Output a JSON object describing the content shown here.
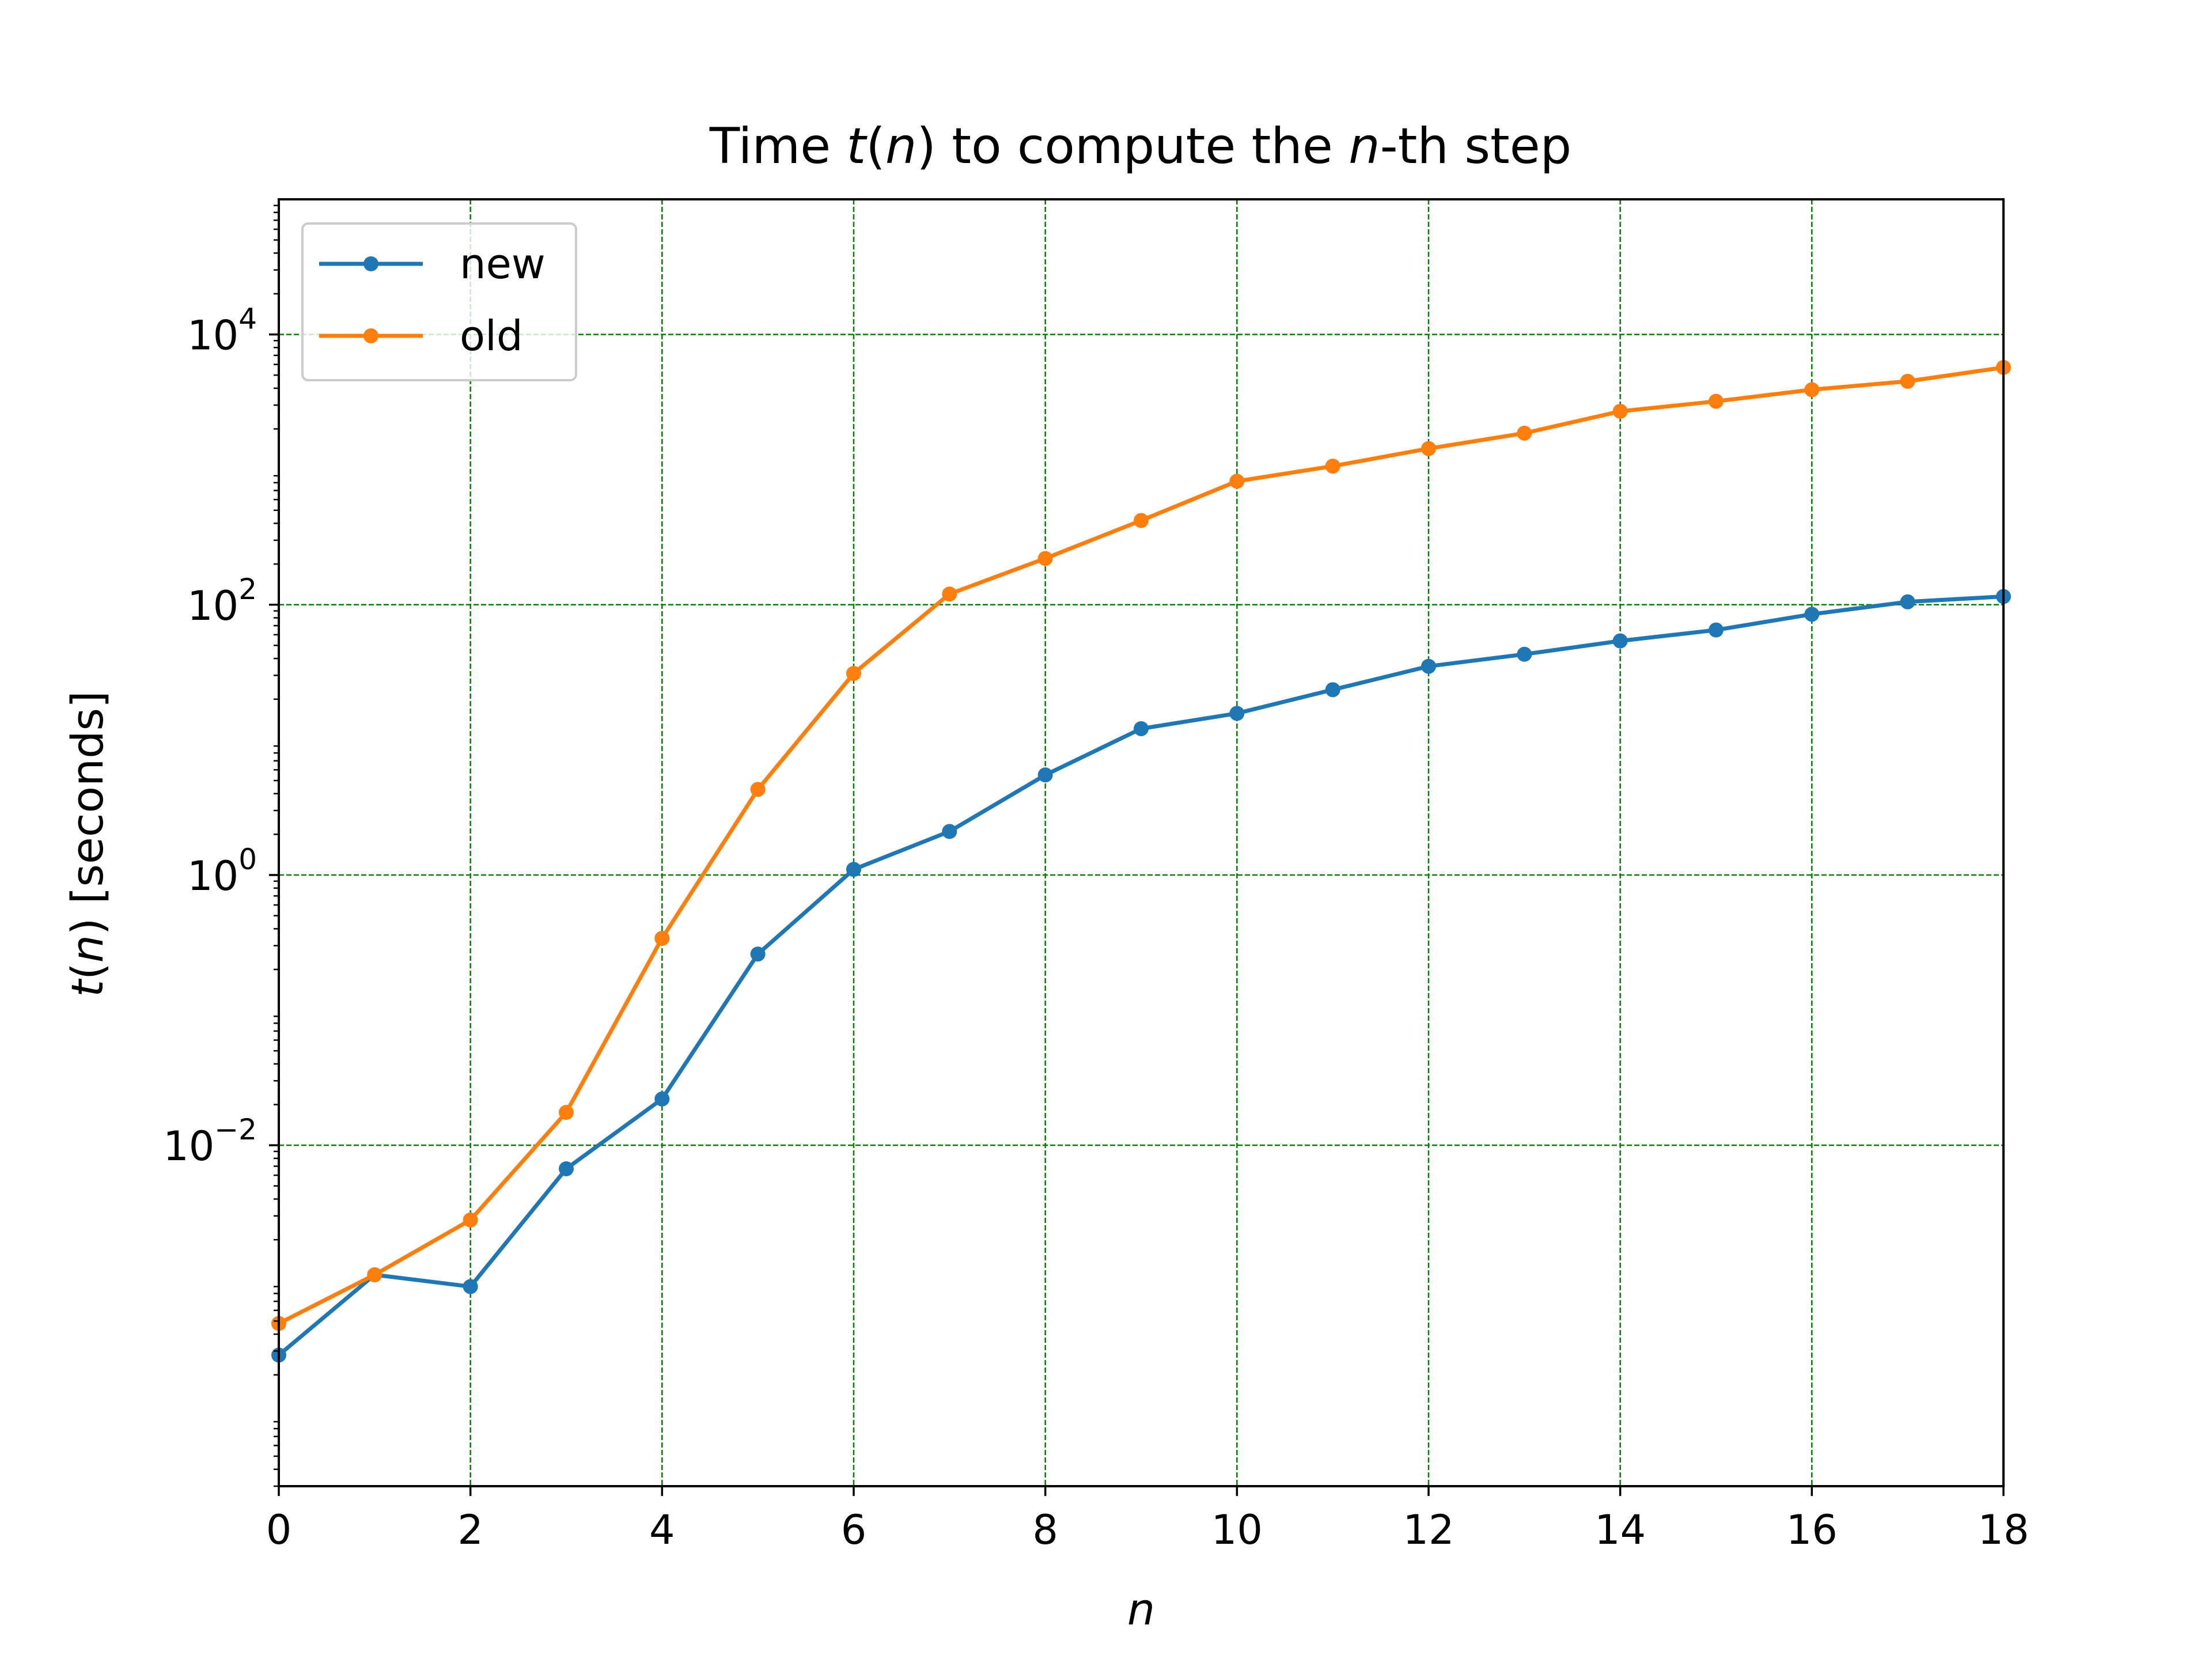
{
  "chart_data": {
    "type": "line",
    "title": {
      "prefix": "Time ",
      "t": "t",
      "open": "(",
      "n1": "n",
      "close": ")",
      "middle": " to compute the ",
      "n2": "n",
      "suffix": "-th step"
    },
    "xlabel": "n",
    "ylabel": {
      "t": "t",
      "open": "(",
      "n": "n",
      "rest": ") [seconds]"
    },
    "x": [
      0,
      1,
      2,
      3,
      4,
      5,
      6,
      7,
      8,
      9,
      10,
      11,
      12,
      13,
      14,
      15,
      16,
      17,
      18
    ],
    "xlim": [
      0,
      18
    ],
    "ylim": [
      3e-05,
      100000
    ],
    "yscale": "log",
    "x_ticks": [
      0,
      2,
      4,
      6,
      8,
      10,
      12,
      14,
      16,
      18
    ],
    "x_tick_labels": [
      "0",
      "2",
      "4",
      "6",
      "8",
      "10",
      "12",
      "14",
      "16",
      "18"
    ],
    "y_ticks": [
      {
        "value": 0.01,
        "base": "10",
        "exp": "−2"
      },
      {
        "value": 1,
        "base": "10",
        "exp": "0"
      },
      {
        "value": 100,
        "base": "10",
        "exp": "2"
      },
      {
        "value": 10000,
        "base": "10",
        "exp": "4"
      }
    ],
    "grid": true,
    "grid_color": "#008000",
    "legend_position": "top-left",
    "series": [
      {
        "name": "new",
        "color": "#1f77b4",
        "marker": "circle",
        "values": [
          0.00028,
          0.0011,
          0.0009,
          0.0067,
          0.022,
          0.26,
          1.1,
          2.1,
          5.5,
          12.1,
          15.7,
          23.5,
          35,
          43,
          54,
          65,
          85,
          105,
          115
        ]
      },
      {
        "name": "old",
        "color": "#ff7f0e",
        "marker": "circle",
        "values": [
          0.00048,
          0.0011,
          0.0028,
          0.0175,
          0.34,
          4.3,
          31,
          120,
          220,
          420,
          820,
          1060,
          1430,
          1860,
          2700,
          3200,
          3900,
          4500,
          5700
        ]
      }
    ]
  }
}
